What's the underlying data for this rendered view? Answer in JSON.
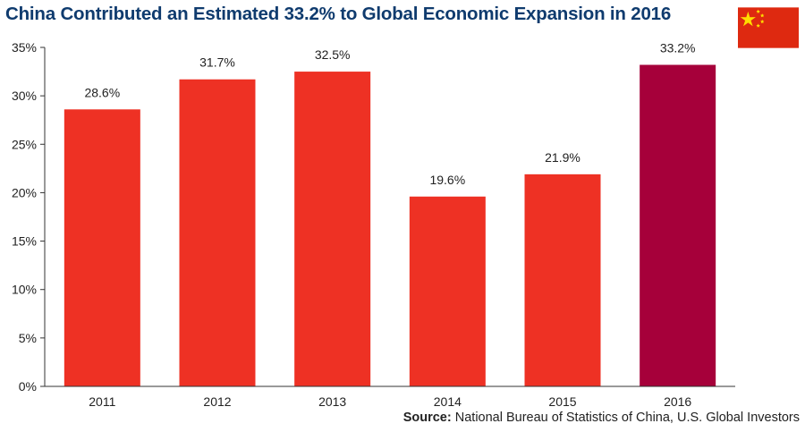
{
  "title": "China Contributed an Estimated 33.2% to Global Economic Expansion in 2016",
  "source": {
    "label": "Source:",
    "text": "National Bureau of Statistics of China, U.S. Global Investors"
  },
  "flag": {
    "icon": "china-flag-icon",
    "field_color": "#de2910",
    "star_color": "#ffde00"
  },
  "colors": {
    "bar": "#ee3124",
    "highlight_bar": "#a6003a",
    "title": "#0f3b6e",
    "axis": "#333333"
  },
  "chart_data": {
    "type": "bar",
    "title": "China Contributed an Estimated 33.2% to Global Economic Expansion in 2016",
    "xlabel": "",
    "ylabel": "",
    "categories": [
      "2011",
      "2012",
      "2013",
      "2014",
      "2015",
      "2016"
    ],
    "values": [
      28.6,
      31.7,
      32.5,
      19.6,
      21.9,
      33.2
    ],
    "data_labels": [
      "28.6%",
      "31.7%",
      "32.5%",
      "19.6%",
      "21.9%",
      "33.2%"
    ],
    "highlight_index": 5,
    "ylim": [
      0,
      35
    ],
    "yticks": [
      0,
      5,
      10,
      15,
      20,
      25,
      30,
      35
    ],
    "ytick_labels": [
      "0%",
      "5%",
      "10%",
      "15%",
      "20%",
      "25%",
      "30%",
      "35%"
    ],
    "grid": false,
    "legend": "none"
  }
}
